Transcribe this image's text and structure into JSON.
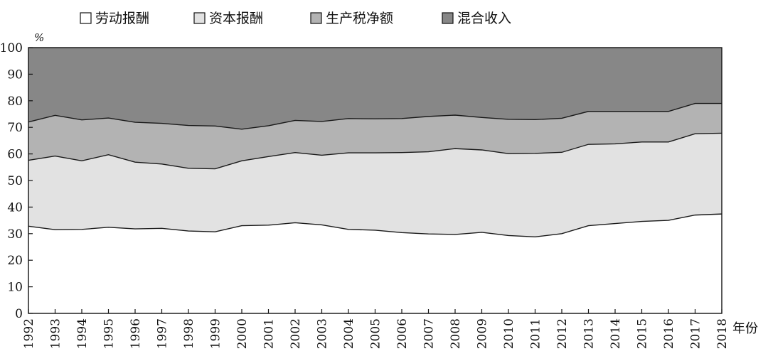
{
  "chart_data": {
    "type": "area",
    "stacked": true,
    "x": [
      "1992",
      "1993",
      "1994",
      "1995",
      "1996",
      "1997",
      "1998",
      "1999",
      "2000",
      "2001",
      "2002",
      "2003",
      "2004",
      "2005",
      "2006",
      "2007",
      "2008",
      "2009",
      "2010",
      "2011",
      "2012",
      "2013",
      "2014",
      "2015",
      "2016",
      "2017",
      "2018"
    ],
    "ylim": [
      0,
      100
    ],
    "yticks": [
      "0",
      "10",
      "20",
      "30",
      "40",
      "50",
      "60",
      "70",
      "80",
      "90",
      "100"
    ],
    "ylabel": "%",
    "xlabel": "年份",
    "legend_position": "top",
    "grid": false,
    "series": [
      {
        "name": "劳动报酬",
        "color": "#ffffff",
        "values": [
          32.8,
          31.5,
          31.6,
          32.4,
          31.8,
          32.0,
          31.0,
          30.7,
          33.0,
          33.2,
          34.1,
          33.3,
          31.6,
          31.3,
          30.4,
          29.9,
          29.7,
          30.5,
          29.3,
          28.8,
          30.0,
          33.0,
          33.8,
          34.6,
          35.0,
          37.0,
          37.4
        ]
      },
      {
        "name": "资本报酬",
        "color": "#e2e2e2",
        "values": [
          24.8,
          27.7,
          25.8,
          27.3,
          25.1,
          24.2,
          23.6,
          23.7,
          24.4,
          25.8,
          26.4,
          26.2,
          28.8,
          29.1,
          30.1,
          30.9,
          32.3,
          31.0,
          30.8,
          31.4,
          30.6,
          30.6,
          30.0,
          29.9,
          29.5,
          30.6,
          30.4
        ]
      },
      {
        "name": "生产税净额",
        "color": "#b3b3b3",
        "values": [
          14.4,
          15.3,
          15.4,
          13.8,
          15.0,
          15.3,
          16.1,
          16.1,
          11.9,
          11.6,
          12.1,
          12.7,
          12.9,
          12.8,
          12.8,
          13.3,
          12.6,
          12.2,
          12.9,
          12.7,
          12.8,
          12.4,
          12.2,
          11.5,
          11.5,
          11.4,
          11.2
        ]
      },
      {
        "name": "混合收入",
        "color": "#878787",
        "values": [
          28.0,
          25.5,
          27.2,
          26.5,
          28.1,
          28.5,
          29.3,
          29.5,
          30.7,
          29.4,
          27.4,
          27.8,
          26.7,
          26.8,
          26.7,
          25.9,
          25.4,
          26.3,
          27.0,
          27.1,
          26.6,
          24.0,
          24.0,
          24.0,
          24.0,
          21.0,
          21.0
        ]
      }
    ]
  }
}
